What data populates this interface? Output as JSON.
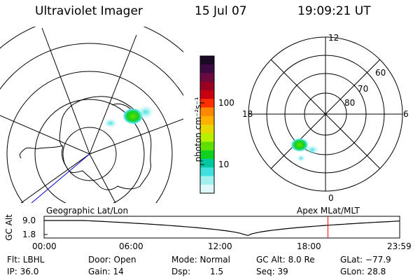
{
  "header": {
    "instrument": "Ultraviolet Imager",
    "date": "15 Jul 07",
    "time": "19:09:21 UT"
  },
  "colorbar": {
    "unit_label": "photon cm⁻²s⁻¹",
    "ticks": [
      "100",
      "10"
    ],
    "colors": [
      "#1a0a28",
      "#3b0a40",
      "#6a0a40",
      "#9a0020",
      "#c80010",
      "#ff3000",
      "#ff8800",
      "#ffb000",
      "#e8d800",
      "#b8f000",
      "#60e000",
      "#10d020",
      "#00c8a0",
      "#40e0e0",
      "#a0f0f0",
      "#e0f8f8"
    ]
  },
  "left_map": {
    "label": "Geographic Lat/Lon"
  },
  "right_map": {
    "label": "Apex MLat/MLT",
    "mlt_labels": {
      "top": "12",
      "left": "18",
      "right": "6",
      "bottom": "0"
    },
    "mlat_labels": [
      "60",
      "70",
      "80"
    ]
  },
  "altitude_plot": {
    "y_axis_label": "GC Alt",
    "y_ticks": [
      "9.0",
      "1.8"
    ],
    "x_ticks": [
      "00:00",
      "06:00",
      "12:00",
      "18:00",
      "23:59"
    ],
    "current_time_hours": 19.155,
    "marker_color": "#ff0000"
  },
  "footer": {
    "filter": "Flt: LBHL",
    "ip": "IP: 36.0",
    "door": "Door: Open",
    "gain": "Gain: 14",
    "mode": "Mode: Normal",
    "dsp_label": "Dsp:",
    "dsp_value": "1.5",
    "gc_alt": "GC Alt: 8.0 Re",
    "seq": "Seq: 39",
    "glat": "GLat: −77.9",
    "glon": "GLon:  28.8"
  }
}
